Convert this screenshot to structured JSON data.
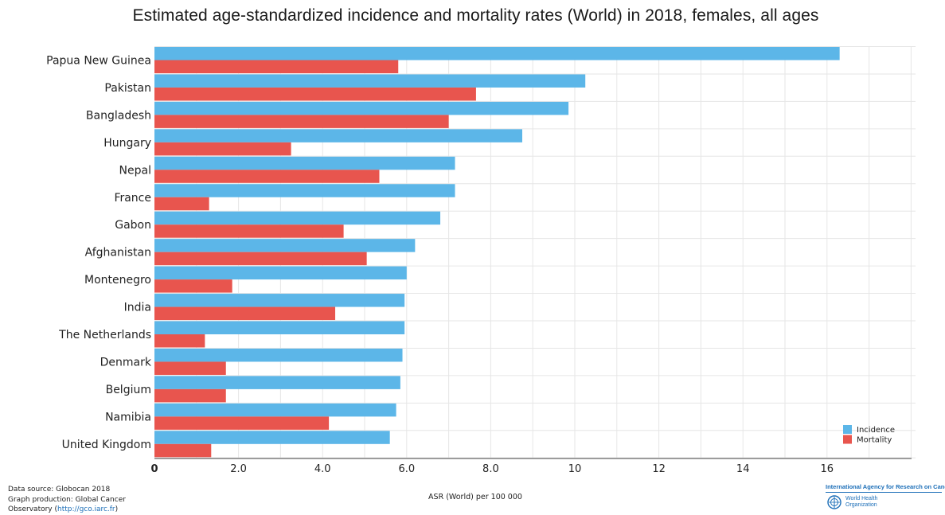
{
  "chart_data": {
    "type": "bar",
    "orientation": "horizontal",
    "title": "Estimated age-standardized incidence and mortality rates (World) in 2018, females, all ages",
    "xlabel": "ASR (World) per 100 000",
    "ylabel": "",
    "xlim": [
      0,
      18
    ],
    "grid": true,
    "legend_position": "bottom-right",
    "x_ticks": [
      {
        "value": 0,
        "label": "0"
      },
      {
        "value": 2,
        "label": "2.0"
      },
      {
        "value": 4,
        "label": "4.0"
      },
      {
        "value": 6,
        "label": "6.0"
      },
      {
        "value": 8,
        "label": "8.0"
      },
      {
        "value": 10,
        "label": "10"
      },
      {
        "value": 12,
        "label": "12"
      },
      {
        "value": 14,
        "label": "14"
      },
      {
        "value": 16,
        "label": "16"
      }
    ],
    "categories": [
      "Papua New Guinea",
      "Pakistan",
      "Bangladesh",
      "Hungary",
      "Nepal",
      "France",
      "Gabon",
      "Afghanistan",
      "Montenegro",
      "India",
      "The Netherlands",
      "Denmark",
      "Belgium",
      "Namibia",
      "United Kingdom"
    ],
    "series": [
      {
        "name": "Incidence",
        "color": "#5cb6e8",
        "values": [
          16.3,
          10.25,
          9.85,
          8.75,
          7.15,
          7.15,
          6.8,
          6.2,
          6.0,
          5.95,
          5.95,
          5.9,
          5.85,
          5.75,
          5.6
        ]
      },
      {
        "name": "Mortality",
        "color": "#e8554e",
        "values": [
          5.8,
          7.65,
          7.0,
          3.25,
          5.35,
          1.3,
          4.5,
          5.05,
          1.85,
          4.3,
          1.2,
          1.7,
          1.7,
          4.15,
          1.35
        ]
      }
    ]
  },
  "footer": {
    "source_line1": "Data source: Globocan 2018",
    "source_line2": "Graph production: Global Cancer",
    "source_line3_prefix": "Observatory (",
    "source_link": "http://gco.iarc.fr",
    "source_line3_suffix": ")"
  },
  "logos": {
    "iarc": "International Agency for Research on Cancer",
    "who_line1": "World Health",
    "who_line2": "Organization"
  },
  "colors": {
    "grid": "#e6e6e6",
    "axis": "#444444"
  }
}
